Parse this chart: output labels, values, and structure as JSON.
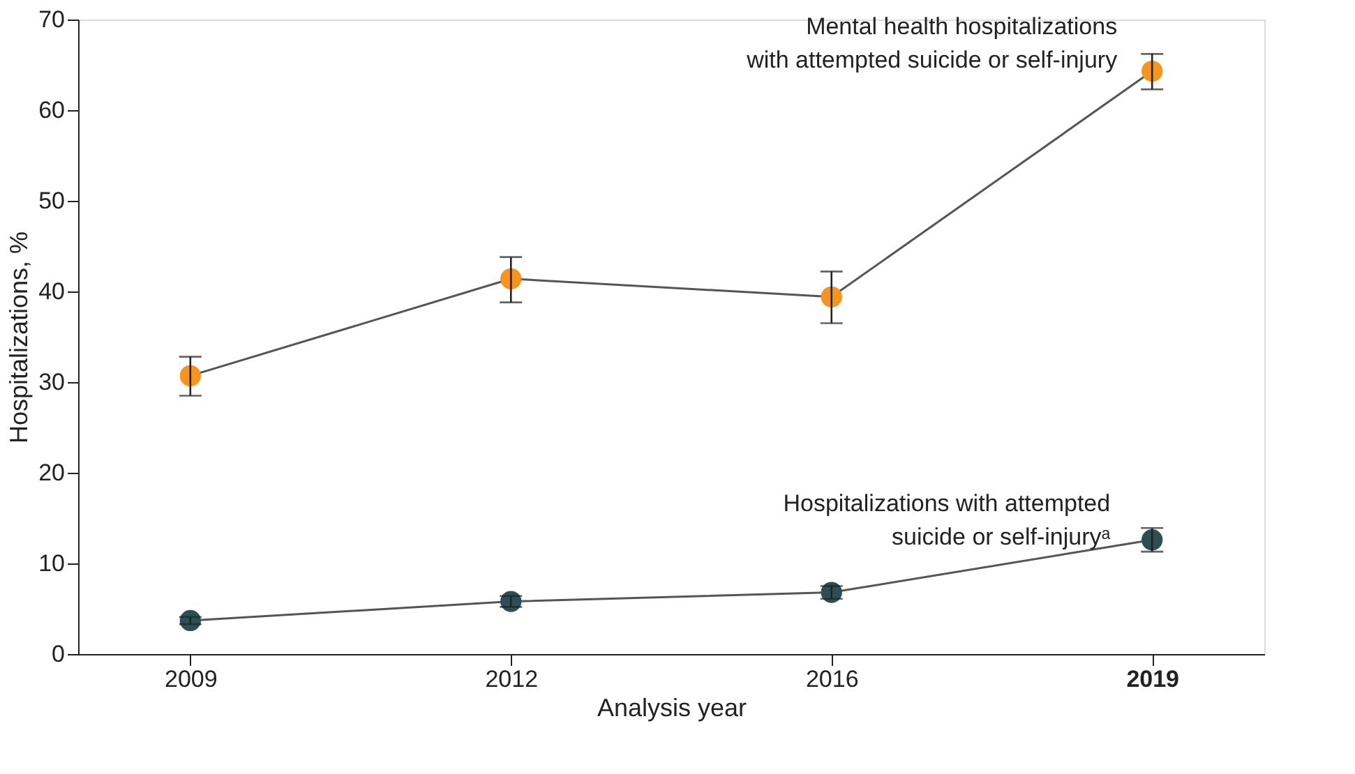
{
  "chart_data": {
    "type": "line",
    "xlabel": "Analysis year",
    "ylabel": "Hospitalizations, %",
    "categories": [
      "2009",
      "2012",
      "2016",
      "2019"
    ],
    "series": [
      {
        "name": "Mental health hospitalizations\nwith attempted suicide or self-injury",
        "color": "#f7941d",
        "values": [
          30.7,
          41.4,
          39.4,
          64.3
        ],
        "errors": [
          [
            28.5,
            32.8
          ],
          [
            38.8,
            43.8
          ],
          [
            36.5,
            42.2
          ],
          [
            62.3,
            66.2
          ]
        ]
      },
      {
        "name": "Hospitalizations with attempted\nsuicide or self-injuryᵃ",
        "color": "#2c4f55",
        "values": [
          3.7,
          5.8,
          6.8,
          12.6
        ],
        "errors": [
          [
            3.3,
            4.1
          ],
          [
            5.2,
            6.4
          ],
          [
            6.1,
            7.5
          ],
          [
            11.3,
            13.9
          ]
        ]
      }
    ],
    "ylim": [
      0,
      70
    ],
    "yticks": [
      0,
      10,
      20,
      30,
      40,
      50,
      60,
      70
    ],
    "grid": false,
    "marker": "circle",
    "line_style": "solid",
    "legend": false
  }
}
